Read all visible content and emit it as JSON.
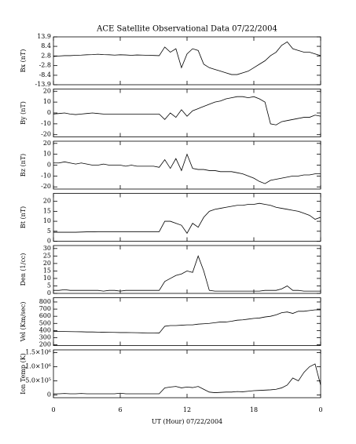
{
  "chart_data": [
    {
      "type": "line",
      "title": "ACE Satellite Observational Data   07/22/2004",
      "ylabel": "Bx (nT)",
      "color": "#000000",
      "x": [
        0,
        0.5,
        1,
        1.5,
        2,
        2.5,
        3,
        3.5,
        4,
        4.5,
        5,
        5.5,
        6,
        6.5,
        7,
        7.5,
        8,
        8.5,
        9,
        9.5,
        10,
        10.5,
        11,
        11.5,
        12,
        12.5,
        13,
        13.5,
        14,
        14.5,
        15,
        15.5,
        16,
        16.5,
        17,
        17.5,
        18,
        18.5,
        19,
        19.5,
        20,
        20.5,
        21,
        21.5,
        22,
        22.5,
        23,
        23.5,
        24
      ],
      "values": [
        2.5,
        2.8,
        3,
        3,
        3.2,
        3.3,
        3.5,
        3.6,
        3.8,
        3.6,
        3.5,
        3.3,
        3.5,
        3.4,
        3.2,
        3.4,
        3.3,
        3.2,
        3.1,
        3,
        8,
        5,
        7,
        -4,
        4,
        7,
        6,
        -2,
        -4,
        -5,
        -6,
        -7,
        -8,
        -8,
        -7,
        -6,
        -4,
        -2,
        0,
        3,
        5,
        9,
        11,
        7,
        6,
        5,
        5,
        4,
        3
      ],
      "xlim": [
        0,
        24
      ],
      "xticks": [
        0,
        6,
        12,
        18,
        {
          "value": 24,
          "label": "0"
        }
      ],
      "ylim": [
        -13.9,
        13.9
      ],
      "yticks": [
        -13.9,
        -8.4,
        -2.8,
        2.8,
        8.4,
        13.9
      ]
    },
    {
      "type": "line",
      "ylabel": "By (nT)",
      "color": "#000000",
      "x": [
        0,
        0.5,
        1,
        1.5,
        2,
        2.5,
        3,
        3.5,
        4,
        4.5,
        5,
        5.5,
        6,
        6.5,
        7,
        7.5,
        8,
        8.5,
        9,
        9.5,
        10,
        10.5,
        11,
        11.5,
        12,
        12.5,
        13,
        13.5,
        14,
        14.5,
        15,
        15.5,
        16,
        16.5,
        17,
        17.5,
        18,
        18.5,
        19,
        19.5,
        20,
        20.5,
        21,
        21.5,
        22,
        22.5,
        23,
        23.5,
        24
      ],
      "values": [
        -1,
        -0.5,
        0,
        -1,
        -1.5,
        -1,
        -0.5,
        0,
        -0.5,
        -1,
        -1,
        -1,
        -1,
        -1,
        -1,
        -1,
        -1,
        -1,
        -1,
        -1,
        -6,
        0,
        -4,
        3,
        -3,
        2,
        4,
        6,
        8,
        10,
        11,
        13,
        14,
        15,
        15,
        14,
        15,
        13,
        10,
        -10,
        -11,
        -8,
        -7,
        -6,
        -5,
        -4,
        -4,
        -2,
        -3
      ],
      "xlim": [
        0,
        24
      ],
      "xticks": [
        0,
        6,
        12,
        18,
        {
          "value": 24,
          "label": "0"
        }
      ],
      "ylim": [
        -22,
        22
      ],
      "yticks": [
        -20,
        -10,
        0,
        10,
        20
      ]
    },
    {
      "type": "line",
      "ylabel": "Bz (nT)",
      "color": "#000000",
      "x": [
        0,
        0.5,
        1,
        1.5,
        2,
        2.5,
        3,
        3.5,
        4,
        4.5,
        5,
        5.5,
        6,
        6.5,
        7,
        7.5,
        8,
        8.5,
        9,
        9.5,
        10,
        10.5,
        11,
        11.5,
        12,
        12.5,
        13,
        13.5,
        14,
        14.5,
        15,
        15.5,
        16,
        16.5,
        17,
        17.5,
        18,
        18.5,
        19,
        19.5,
        20,
        20.5,
        21,
        21.5,
        22,
        22.5,
        23,
        23.5,
        24
      ],
      "values": [
        2,
        2,
        3,
        2,
        1,
        2,
        1,
        0,
        0,
        1,
        0,
        0,
        0,
        -1,
        0,
        -1,
        -1,
        -1,
        -1,
        -2,
        5,
        -3,
        6,
        -5,
        10,
        -3,
        -4,
        -4,
        -5,
        -5,
        -6,
        -6,
        -6,
        -7,
        -8,
        -10,
        -12,
        -15,
        -17,
        -14,
        -13,
        -12,
        -11,
        -10,
        -10,
        -9,
        -9,
        -8,
        -8
      ],
      "xlim": [
        0,
        24
      ],
      "xticks": [
        0,
        6,
        12,
        18,
        {
          "value": 24,
          "label": "0"
        }
      ],
      "ylim": [
        -22,
        22
      ],
      "yticks": [
        -20,
        -10,
        0,
        10,
        20
      ]
    },
    {
      "type": "line",
      "ylabel": "Bt (nT)",
      "color": "#000000",
      "x": [
        0,
        0.5,
        1,
        1.5,
        2,
        2.5,
        3,
        3.5,
        4,
        4.5,
        5,
        5.5,
        6,
        6.5,
        7,
        7.5,
        8,
        8.5,
        9,
        9.5,
        10,
        10.5,
        11,
        11.5,
        12,
        12.5,
        13,
        13.5,
        14,
        14.5,
        15,
        15.5,
        16,
        16.5,
        17,
        17.5,
        18,
        18.5,
        19,
        19.5,
        20,
        20.5,
        21,
        21.5,
        22,
        22.5,
        23,
        23.5,
        24
      ],
      "values": [
        4.5,
        4.5,
        4.5,
        4.5,
        4.5,
        4.6,
        4.7,
        4.7,
        4.8,
        4.8,
        4.8,
        4.8,
        4.8,
        4.8,
        4.8,
        4.8,
        4.8,
        4.8,
        4.8,
        4.8,
        10,
        10,
        9,
        8,
        4,
        9,
        7,
        12,
        15,
        16,
        16.5,
        17,
        17.5,
        18,
        18,
        18.5,
        18.5,
        19,
        18.5,
        18,
        17,
        16.5,
        16,
        15.5,
        15,
        14,
        13,
        11,
        12
      ],
      "xlim": [
        0,
        24
      ],
      "xticks": [
        0,
        6,
        12,
        18,
        {
          "value": 24,
          "label": "0"
        }
      ],
      "ylim": [
        0,
        24
      ],
      "yticks": [
        0,
        5,
        10,
        15,
        20
      ]
    },
    {
      "type": "line",
      "ylabel": "Den (1/cc)",
      "color": "#000000",
      "x": [
        0,
        0.5,
        1,
        1.5,
        2,
        2.5,
        3,
        3.5,
        4,
        4.5,
        5,
        5.5,
        6,
        6.5,
        7,
        7.5,
        8,
        8.5,
        9,
        9.5,
        10,
        10.5,
        11,
        11.5,
        12,
        12.5,
        13,
        13.5,
        14,
        14.5,
        15,
        15.5,
        16,
        16.5,
        17,
        17.5,
        18,
        18.5,
        19,
        19.5,
        20,
        20.5,
        21,
        21.5,
        22,
        22.5,
        23,
        23.5,
        24
      ],
      "values": [
        2,
        2,
        2.5,
        2,
        2,
        2,
        2,
        2,
        2,
        1.5,
        2,
        2,
        1.5,
        2,
        2,
        2,
        2,
        2,
        2,
        2,
        8,
        10,
        12,
        13,
        15,
        14,
        25,
        15,
        2,
        1.5,
        1.5,
        1.5,
        1.5,
        1.5,
        1.5,
        1.5,
        1.5,
        1.5,
        2,
        2,
        2,
        3,
        5,
        2,
        2,
        1.5,
        1.5,
        1.5,
        1.5
      ],
      "xlim": [
        0,
        24
      ],
      "xticks": [
        0,
        6,
        12,
        18,
        {
          "value": 24,
          "label": "0"
        }
      ],
      "ylim": [
        0,
        32
      ],
      "yticks": [
        0,
        5,
        10,
        15,
        20,
        25,
        30
      ]
    },
    {
      "type": "line",
      "ylabel": "Vel (Km/sec)",
      "color": "#000000",
      "x": [
        0,
        0.5,
        1,
        1.5,
        2,
        2.5,
        3,
        3.5,
        4,
        4.5,
        5,
        5.5,
        6,
        6.5,
        7,
        7.5,
        8,
        8.5,
        9,
        9.5,
        10,
        10.5,
        11,
        11.5,
        12,
        12.5,
        13,
        13.5,
        14,
        14.5,
        15,
        15.5,
        16,
        16.5,
        17,
        17.5,
        18,
        18.5,
        19,
        19.5,
        20,
        20.5,
        21,
        21.5,
        22,
        22.5,
        23,
        23.5,
        24
      ],
      "values": [
        390,
        388,
        386,
        385,
        384,
        383,
        380,
        380,
        378,
        376,
        375,
        374,
        372,
        372,
        371,
        370,
        368,
        367,
        366,
        365,
        460,
        470,
        470,
        475,
        480,
        480,
        490,
        495,
        500,
        510,
        520,
        520,
        530,
        545,
        550,
        560,
        570,
        575,
        590,
        600,
        620,
        650,
        660,
        640,
        670,
        670,
        680,
        690,
        690
      ],
      "xlim": [
        0,
        24
      ],
      "xticks": [
        0,
        6,
        12,
        18,
        {
          "value": 24,
          "label": "0"
        }
      ],
      "ylim": [
        190,
        860
      ],
      "yticks": [
        200,
        300,
        400,
        500,
        600,
        700,
        800
      ]
    },
    {
      "type": "line",
      "ylabel": "Ion Temp (K)",
      "xlabel": "UT (Hour)   07/22/2004",
      "color": "#000000",
      "x": [
        0,
        0.5,
        1,
        1.5,
        2,
        2.5,
        3,
        3.5,
        4,
        4.5,
        5,
        5.5,
        6,
        6.5,
        7,
        7.5,
        8,
        8.5,
        9,
        9.5,
        10,
        10.5,
        11,
        11.5,
        12,
        12.5,
        13,
        13.5,
        14,
        14.5,
        15,
        15.5,
        16,
        16.5,
        17,
        17.5,
        18,
        18.5,
        19,
        19.5,
        20,
        20.5,
        21,
        21.5,
        22,
        22.5,
        23,
        23.5,
        24
      ],
      "values": [
        40000,
        40000,
        50000,
        40000,
        40000,
        50000,
        40000,
        40000,
        40000,
        40000,
        40000,
        40000,
        60000,
        40000,
        40000,
        40000,
        40000,
        40000,
        40000,
        40000,
        250000,
        280000,
        300000,
        250000,
        280000,
        260000,
        300000,
        200000,
        100000,
        80000,
        90000,
        100000,
        100000,
        120000,
        110000,
        130000,
        150000,
        160000,
        170000,
        180000,
        200000,
        250000,
        350000,
        600000,
        500000,
        800000,
        1000000,
        1100000,
        350000
      ],
      "xlim": [
        0,
        24
      ],
      "xticks": [
        0,
        6,
        12,
        18,
        {
          "value": 24,
          "label": "0"
        }
      ],
      "ylim": [
        -100000,
        1600000
      ],
      "yticks": [
        0,
        {
          "value": 500000,
          "label": "5.0×10⁵"
        },
        {
          "value": 1000000,
          "label": "1.0×10⁶"
        },
        {
          "value": 1500000,
          "label": "1.5×10⁶"
        }
      ]
    }
  ]
}
